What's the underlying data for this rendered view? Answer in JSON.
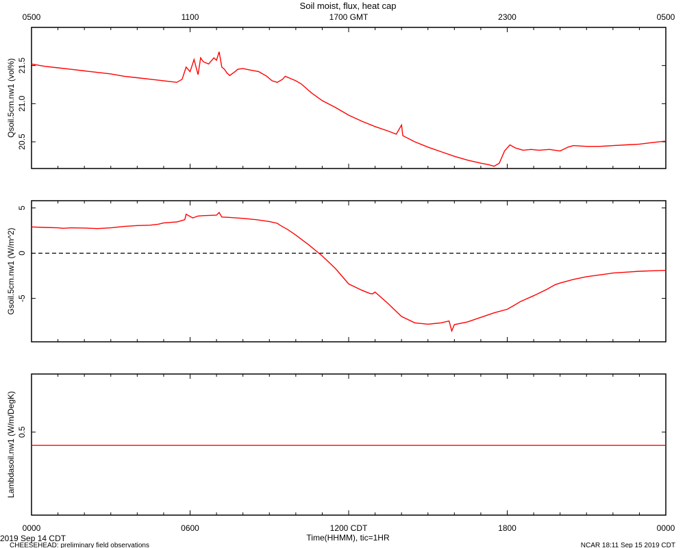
{
  "chart_data": {
    "type": "line",
    "title": "Soil moist, flux, heat cap",
    "top_axis": {
      "ticks": [
        "0500",
        "1100",
        "1700 GMT",
        "2300",
        "0500"
      ]
    },
    "bottom_axis": {
      "ticks": [
        "0000",
        "0600",
        "1200 CDT",
        "1800",
        "0000"
      ],
      "label": "Time(HHMM), tic=1HR"
    },
    "x_range_hours": [
      0,
      24
    ],
    "footer": {
      "date_left": "2019 Sep 14 CDT",
      "source_left": "CHEESEHEAD: preliminary field observations",
      "stamp_right": "NCAR 18:11 Sep 15 2019 CDT"
    },
    "panels": [
      {
        "ylabel": "Qsoil.5cm.nw1 (vol%)",
        "ylim": [
          20.15,
          22.0
        ],
        "yticks": [
          {
            "v": 20.5,
            "label": "20.5"
          },
          {
            "v": 21.0,
            "label": "21.0"
          },
          {
            "v": 21.5,
            "label": "21.5"
          }
        ],
        "color": "#ff0000",
        "x": [
          0,
          0.5,
          1,
          1.5,
          2,
          2.5,
          3,
          3.5,
          4,
          4.5,
          5,
          5.5,
          5.7,
          5.85,
          6.0,
          6.15,
          6.3,
          6.4,
          6.5,
          6.7,
          6.9,
          7.0,
          7.1,
          7.2,
          7.3,
          7.4,
          7.5,
          7.7,
          7.8,
          8.0,
          8.3,
          8.6,
          8.9,
          9.1,
          9.3,
          9.5,
          9.6,
          9.8,
          10.0,
          10.2,
          10.4,
          10.6,
          11.0,
          11.5,
          12.0,
          12.5,
          13.0,
          13.5,
          13.8,
          14.0,
          14.05,
          14.5,
          15.0,
          15.5,
          16.0,
          16.5,
          17.0,
          17.3,
          17.5,
          17.7,
          17.9,
          18.1,
          18.3,
          18.6,
          18.9,
          19.2,
          19.6,
          20.0,
          20.3,
          20.5,
          21.0,
          21.5,
          22.0,
          22.5,
          23.0,
          23.5,
          24.0
        ],
        "values": [
          21.52,
          21.49,
          21.47,
          21.45,
          21.43,
          21.41,
          21.39,
          21.36,
          21.34,
          21.32,
          21.3,
          21.28,
          21.32,
          21.48,
          21.42,
          21.58,
          21.38,
          21.6,
          21.55,
          21.52,
          21.6,
          21.57,
          21.68,
          21.48,
          21.45,
          21.4,
          21.37,
          21.42,
          21.45,
          21.46,
          21.44,
          21.42,
          21.36,
          21.3,
          21.28,
          21.32,
          21.36,
          21.33,
          21.3,
          21.26,
          21.2,
          21.14,
          21.04,
          20.95,
          20.85,
          20.77,
          20.7,
          20.64,
          20.6,
          20.72,
          20.58,
          20.5,
          20.43,
          20.37,
          20.31,
          20.26,
          20.22,
          20.2,
          20.18,
          20.22,
          20.38,
          20.46,
          20.42,
          20.39,
          20.4,
          20.39,
          20.4,
          20.38,
          20.43,
          20.45,
          20.44,
          20.44,
          20.45,
          20.46,
          20.47,
          20.49,
          20.51
        ]
      },
      {
        "ylabel": "Gsoil.5cm.nw1 (W/m^2)",
        "ylim": [
          -9.8,
          5.8
        ],
        "yticks": [
          {
            "v": -5,
            "label": "-5"
          },
          {
            "v": 0,
            "label": "0"
          },
          {
            "v": 5,
            "label": "5"
          }
        ],
        "zero_line": 0,
        "color": "#ff0000",
        "x": [
          0,
          0.5,
          1,
          1.2,
          1.5,
          2,
          2.5,
          3,
          3.5,
          4,
          4.5,
          4.8,
          5,
          5.5,
          5.8,
          5.85,
          6.1,
          6.3,
          6.5,
          7.0,
          7.1,
          7.2,
          7.5,
          8.0,
          8.5,
          9.0,
          9.3,
          9.4,
          9.7,
          10.0,
          10.5,
          11.0,
          11.5,
          12.0,
          12.5,
          12.8,
          12.9,
          13.0,
          13.5,
          14.0,
          14.5,
          15.0,
          15.5,
          15.8,
          15.9,
          16.0,
          16.5,
          17.0,
          17.5,
          18.0,
          18.3,
          18.5,
          19.0,
          19.5,
          19.8,
          20.0,
          20.5,
          21.0,
          21.5,
          22.0,
          22.5,
          23.0,
          23.5,
          24.0
        ],
        "values": [
          2.9,
          2.85,
          2.8,
          2.75,
          2.8,
          2.78,
          2.72,
          2.8,
          2.95,
          3.05,
          3.1,
          3.2,
          3.35,
          3.45,
          3.7,
          4.3,
          3.9,
          4.1,
          4.15,
          4.2,
          4.5,
          4.0,
          3.95,
          3.85,
          3.7,
          3.5,
          3.3,
          3.1,
          2.6,
          2.0,
          0.9,
          -0.3,
          -1.7,
          -3.4,
          -4.1,
          -4.45,
          -4.5,
          -4.3,
          -5.6,
          -7.0,
          -7.7,
          -7.85,
          -7.7,
          -7.5,
          -8.6,
          -7.9,
          -7.6,
          -7.1,
          -6.6,
          -6.2,
          -5.7,
          -5.35,
          -4.7,
          -4.0,
          -3.5,
          -3.3,
          -2.9,
          -2.6,
          -2.4,
          -2.2,
          -2.1,
          -2.0,
          -1.95,
          -1.9
        ]
      },
      {
        "ylabel": "Lambdasoil.nw1 (W/m/DegK)",
        "ylim": [
          0.0,
          0.85
        ],
        "yticks": [
          {
            "v": 0.5,
            "label": "0.5"
          }
        ],
        "color": "#ff0000",
        "x": [
          0,
          24
        ],
        "values": [
          0.42,
          0.42
        ]
      }
    ]
  }
}
